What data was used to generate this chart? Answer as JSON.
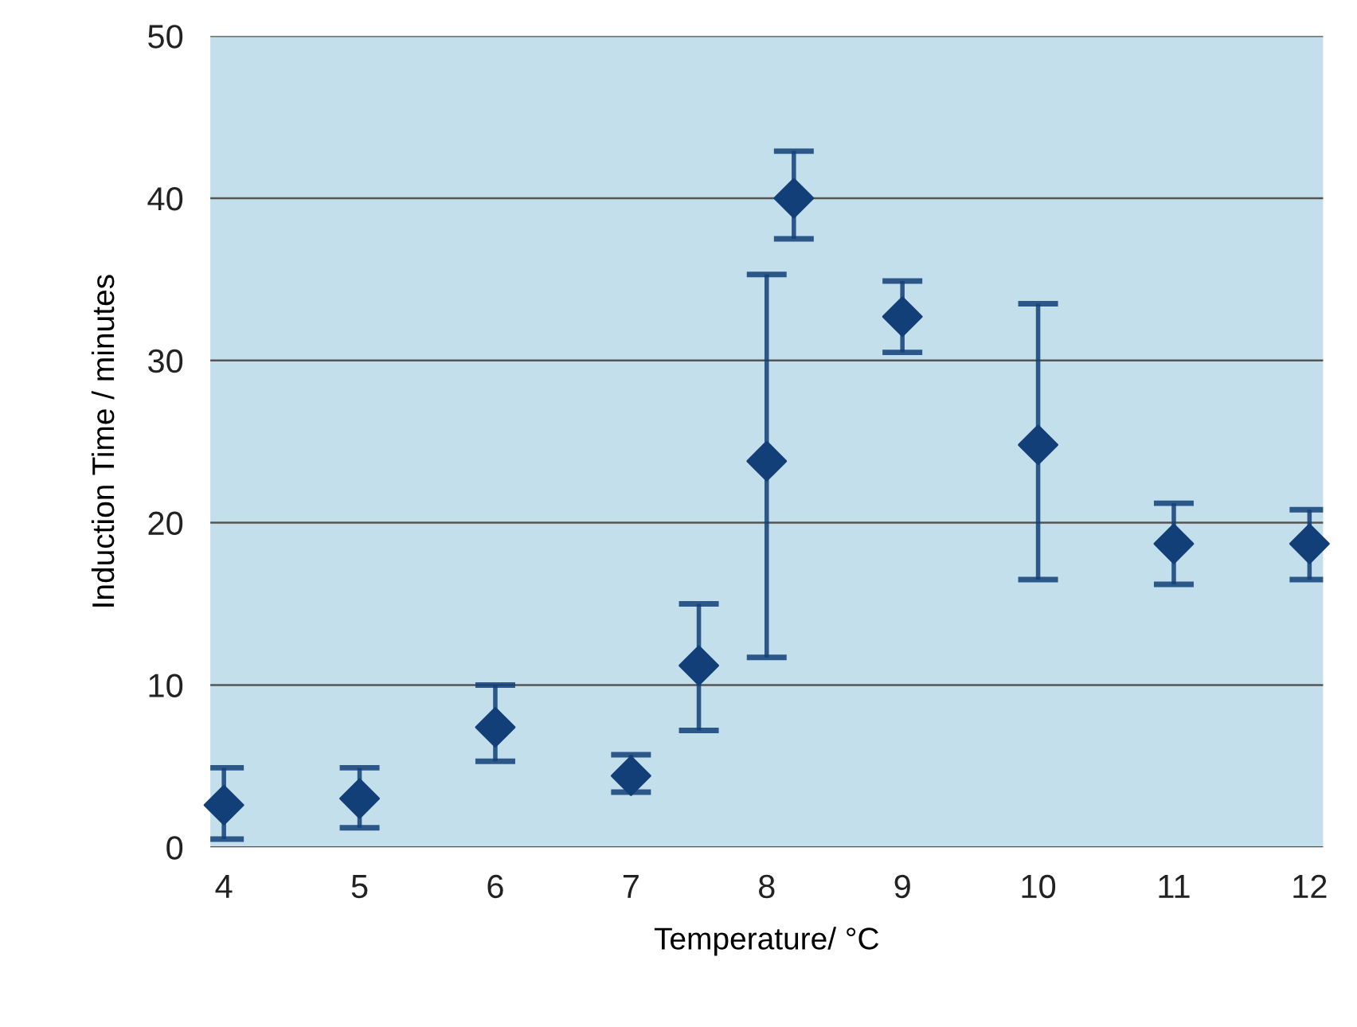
{
  "chart_data": {
    "type": "scatter",
    "xlabel": "Temperature/ °C",
    "ylabel": "Induction Time / minutes",
    "x": [
      4,
      5,
      6,
      7,
      7.5,
      8,
      8.2,
      9,
      10,
      11,
      12
    ],
    "series": [
      {
        "color": "#123f78",
        "values": [
          2.6,
          3.0,
          7.4,
          4.4,
          11.2,
          23.8,
          40.0,
          32.7,
          24.8,
          18.7,
          18.7
        ],
        "errors": [
          [
            0.5,
            4.9
          ],
          [
            1.2,
            4.9
          ],
          [
            5.3,
            10.0
          ],
          [
            3.4,
            5.7
          ],
          [
            7.2,
            15.0
          ],
          [
            11.7,
            35.3
          ],
          [
            37.5,
            42.9
          ],
          [
            30.5,
            34.9
          ],
          [
            16.5,
            33.5
          ],
          [
            16.2,
            21.2
          ],
          [
            16.5,
            20.8
          ]
        ]
      }
    ],
    "xlim": [
      3.9,
      12.1
    ],
    "xticks": [
      4,
      5,
      6,
      7,
      8,
      9,
      10,
      11,
      12
    ],
    "ylim": [
      0,
      50
    ],
    "yticks": [
      0,
      10,
      20,
      30,
      40,
      50
    ],
    "grid": "y",
    "marker": "diamond"
  }
}
